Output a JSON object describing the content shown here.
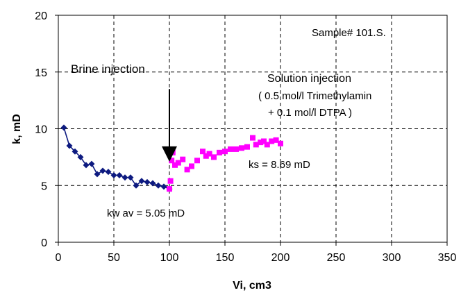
{
  "chart_data": {
    "type": "scatter",
    "xlabel": "Vi, cm3",
    "ylabel": "k, mD",
    "xlim": [
      0,
      350
    ],
    "ylim": [
      0,
      20
    ],
    "x_ticks": [
      "0",
      "50",
      "100",
      "150",
      "200",
      "250",
      "300",
      "350"
    ],
    "y_ticks": [
      "0",
      "5",
      "10",
      "15",
      "20"
    ],
    "grid": "dashed",
    "series": [
      {
        "color": "#0d1a80",
        "marker": "diamond",
        "line": true,
        "points": [
          [
            5,
            10.1
          ],
          [
            10,
            8.5
          ],
          [
            15,
            8.0
          ],
          [
            20,
            7.5
          ],
          [
            25,
            6.8
          ],
          [
            30,
            6.9
          ],
          [
            35,
            6.0
          ],
          [
            40,
            6.3
          ],
          [
            45,
            6.2
          ],
          [
            50,
            5.9
          ],
          [
            55,
            5.9
          ],
          [
            60,
            5.7
          ],
          [
            65,
            5.7
          ],
          [
            70,
            5.0
          ],
          [
            75,
            5.4
          ],
          [
            80,
            5.3
          ],
          [
            85,
            5.2
          ],
          [
            90,
            5.0
          ],
          [
            95,
            4.9
          ],
          [
            100,
            4.7
          ]
        ]
      },
      {
        "color": "#ff00ff",
        "marker": "square",
        "line": false,
        "points": [
          [
            100,
            4.7
          ],
          [
            101,
            5.4
          ],
          [
            102,
            7.2
          ],
          [
            103,
            7.9
          ],
          [
            105,
            6.8
          ],
          [
            108,
            7.0
          ],
          [
            112,
            7.3
          ],
          [
            116,
            6.4
          ],
          [
            120,
            6.7
          ],
          [
            125,
            7.2
          ],
          [
            130,
            8.0
          ],
          [
            133,
            7.6
          ],
          [
            136,
            7.8
          ],
          [
            140,
            7.5
          ],
          [
            145,
            7.9
          ],
          [
            150,
            8.0
          ],
          [
            155,
            8.2
          ],
          [
            160,
            8.2
          ],
          [
            165,
            8.3
          ],
          [
            170,
            8.4
          ],
          [
            175,
            9.2
          ],
          [
            178,
            8.6
          ],
          [
            182,
            8.8
          ],
          [
            185,
            8.9
          ],
          [
            188,
            8.6
          ],
          [
            192,
            8.9
          ],
          [
            196,
            9.0
          ],
          [
            200,
            8.7
          ]
        ]
      }
    ],
    "annotations": {
      "sample": "Sample# 101.S.",
      "brine": "Brine injection",
      "solution_1": "Solution injection",
      "solution_2": "( 0.5 mol/l Trimethylamin",
      "solution_3": "+ 0.1 mol/l DTPA  )",
      "ks": "ks = 8.69 mD",
      "kw": "kw av = 5.05 mD"
    },
    "arrow": {
      "x": 100,
      "y_from": 13.5,
      "y_to": 7.1
    }
  }
}
